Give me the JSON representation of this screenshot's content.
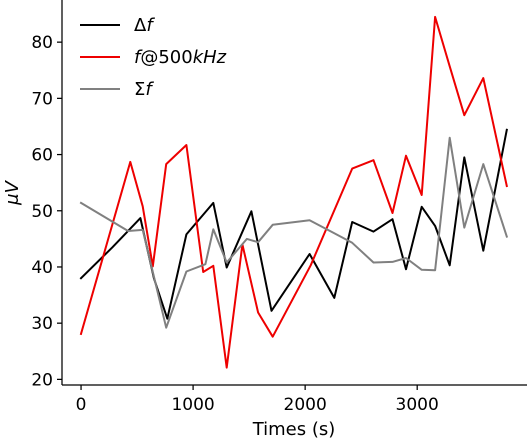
{
  "chart_data": {
    "type": "line",
    "title": "",
    "xlabel": "Times (s)",
    "ylabel": "μV",
    "xlim": [
      -170,
      3980
    ],
    "ylim": [
      19,
      87.5
    ],
    "grid": false,
    "legend_position": "top-left",
    "x_ticks": [
      0,
      1000,
      2000,
      3000
    ],
    "y_ticks": [
      20,
      30,
      40,
      50,
      60,
      70,
      80
    ],
    "series": [
      {
        "name": "Δf",
        "legend_prefix": "Δ",
        "legend_var": "f",
        "legend_suffix": "",
        "color": "#000000",
        "x": [
          0,
          280,
          530,
          650,
          770,
          940,
          1180,
          1300,
          1520,
          1700,
          2040,
          2260,
          2420,
          2610,
          2780,
          2900,
          3040,
          3160,
          3290,
          3420,
          3590,
          3800
        ],
        "values": [
          38.0,
          43.5,
          48.7,
          38.0,
          30.8,
          45.8,
          51.4,
          39.9,
          49.9,
          32.2,
          42.3,
          34.5,
          48.0,
          46.3,
          48.5,
          39.6,
          50.7,
          47.3,
          40.3,
          59.5,
          42.9,
          64.4
        ]
      },
      {
        "name": "f@500kHz",
        "legend_prefix": "",
        "legend_var": "f",
        "legend_suffix": "@500kHz",
        "color": "#ee0000",
        "x": [
          0,
          440,
          550,
          640,
          760,
          940,
          1090,
          1180,
          1300,
          1440,
          1580,
          1710,
          2050,
          2420,
          2610,
          2780,
          2900,
          3040,
          3160,
          3290,
          3420,
          3590,
          3800
        ],
        "values": [
          28.1,
          58.7,
          50.8,
          40.1,
          58.3,
          61.7,
          39.1,
          40.2,
          22.1,
          44.0,
          31.9,
          27.6,
          40.3,
          57.5,
          59.0,
          49.6,
          59.8,
          52.8,
          84.5,
          75.7,
          67.0,
          73.6,
          54.4
        ]
      },
      {
        "name": "Σf",
        "legend_prefix": "Σ",
        "legend_var": "f",
        "legend_suffix": "",
        "color": "#808080",
        "x": [
          0,
          420,
          550,
          760,
          940,
          1110,
          1180,
          1300,
          1480,
          1580,
          1710,
          2040,
          2260,
          2420,
          2610,
          2780,
          2900,
          3040,
          3160,
          3290,
          3420,
          3590,
          3800
        ],
        "values": [
          51.4,
          46.4,
          46.6,
          29.2,
          39.2,
          40.5,
          46.7,
          40.8,
          45.0,
          44.4,
          47.5,
          48.3,
          46.0,
          44.3,
          40.8,
          40.9,
          41.6,
          39.5,
          39.4,
          63.0,
          47.0,
          58.3,
          45.4
        ]
      }
    ]
  }
}
